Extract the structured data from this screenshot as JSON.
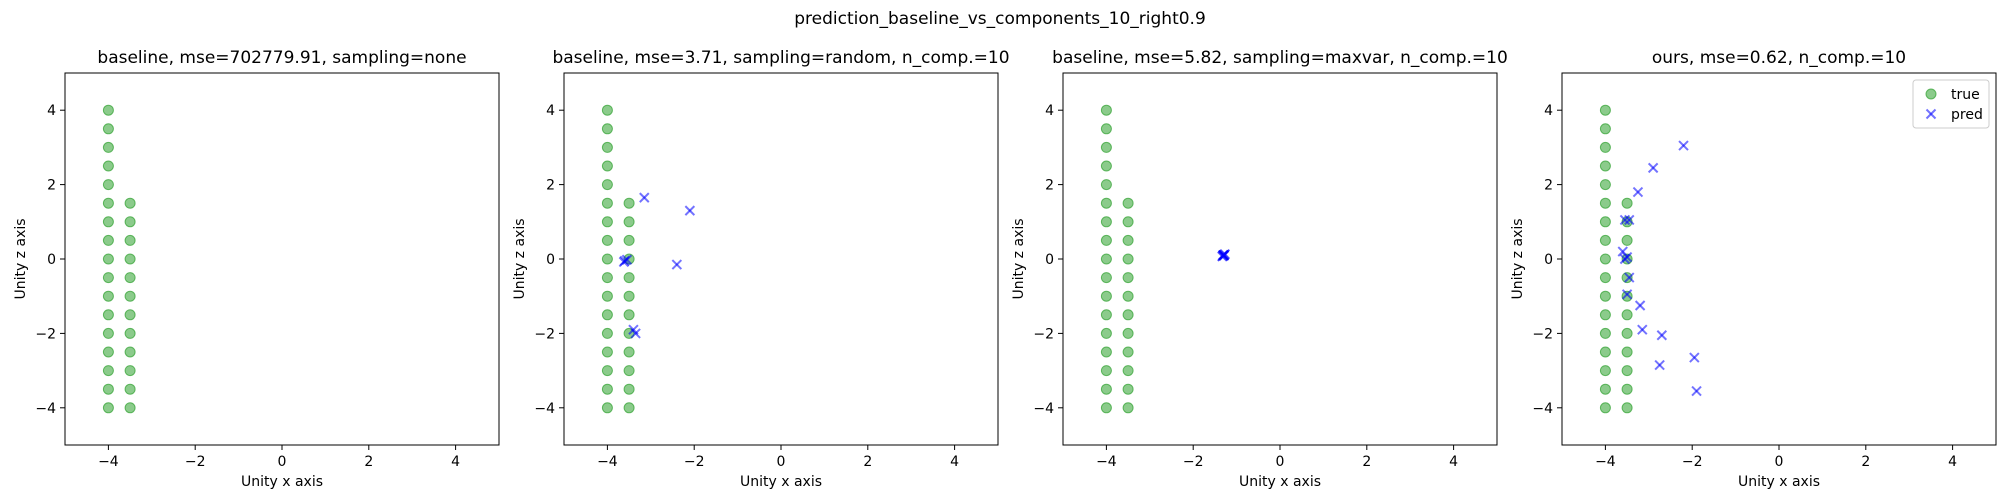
{
  "figure": {
    "suptitle": "prediction_baseline_vs_components_10_right0.9"
  },
  "colors": {
    "true": "#2ca02c",
    "pred": "#0000ff"
  },
  "chart_data": [
    {
      "type": "scatter",
      "title": "baseline, mse=702779.91, sampling=none",
      "xlabel": "Unity x axis",
      "ylabel": "Unity z axis",
      "xlim": [
        -5,
        5
      ],
      "ylim": [
        -5,
        5
      ],
      "xticks": [
        -4,
        -2,
        0,
        2,
        4
      ],
      "yticks": [
        -4,
        -2,
        0,
        2,
        4
      ],
      "grid": false,
      "series": [
        {
          "marker": "circle",
          "color": "#2ca02c",
          "x": [
            -4,
            -4,
            -4,
            -4,
            -4,
            -4,
            -4,
            -4,
            -4,
            -4,
            -4,
            -4,
            -4,
            -4,
            -4,
            -4,
            -4,
            -3.5,
            -3.5,
            -3.5,
            -3.5,
            -3.5,
            -3.5,
            -3.5,
            -3.5,
            -3.5,
            -3.5,
            -3.5,
            -3.5
          ],
          "y": [
            4,
            3.5,
            3,
            2.5,
            2,
            1.5,
            1,
            0.5,
            0,
            -0.5,
            -1,
            -1.5,
            -2,
            -2.5,
            -3,
            -3.5,
            -4,
            1.5,
            1,
            0.5,
            0,
            -0.5,
            -1,
            -1.5,
            -2,
            -2.5,
            -3,
            -3.5,
            -4
          ]
        }
      ]
    },
    {
      "type": "scatter",
      "title": "baseline, mse=3.71, sampling=random, n_comp.=10",
      "xlabel": "Unity x axis",
      "ylabel": "Unity z axis",
      "xlim": [
        -5,
        5
      ],
      "ylim": [
        -5,
        5
      ],
      "xticks": [
        -4,
        -2,
        0,
        2,
        4
      ],
      "yticks": [
        -4,
        -2,
        0,
        2,
        4
      ],
      "grid": false,
      "series": [
        {
          "marker": "circle",
          "color": "#2ca02c",
          "x": [
            -4,
            -4,
            -4,
            -4,
            -4,
            -4,
            -4,
            -4,
            -4,
            -4,
            -4,
            -4,
            -4,
            -4,
            -4,
            -4,
            -4,
            -3.5,
            -3.5,
            -3.5,
            -3.5,
            -3.5,
            -3.5,
            -3.5,
            -3.5,
            -3.5,
            -3.5,
            -3.5,
            -3.5
          ],
          "y": [
            4,
            3.5,
            3,
            2.5,
            2,
            1.5,
            1,
            0.5,
            0,
            -0.5,
            -1,
            -1.5,
            -2,
            -2.5,
            -3,
            -3.5,
            -4,
            1.5,
            1,
            0.5,
            0,
            -0.5,
            -1,
            -1.5,
            -2,
            -2.5,
            -3,
            -3.5,
            -4
          ]
        },
        {
          "marker": "x",
          "color": "#0000ff",
          "x": [
            -3.15,
            -2.1,
            -2.4,
            -3.6,
            -3.55,
            -3.62,
            -3.35,
            -3.4
          ],
          "y": [
            1.65,
            1.3,
            -0.15,
            -0.05,
            -0.02,
            -0.08,
            -2.0,
            -1.9
          ]
        }
      ]
    },
    {
      "type": "scatter",
      "title": "baseline, mse=5.82, sampling=maxvar, n_comp.=10",
      "xlabel": "Unity x axis",
      "ylabel": "Unity z axis",
      "xlim": [
        -5,
        5
      ],
      "ylim": [
        -5,
        5
      ],
      "xticks": [
        -4,
        -2,
        0,
        2,
        4
      ],
      "yticks": [
        -4,
        -2,
        0,
        2,
        4
      ],
      "grid": false,
      "series": [
        {
          "marker": "circle",
          "color": "#2ca02c",
          "x": [
            -4,
            -4,
            -4,
            -4,
            -4,
            -4,
            -4,
            -4,
            -4,
            -4,
            -4,
            -4,
            -4,
            -4,
            -4,
            -4,
            -4,
            -3.5,
            -3.5,
            -3.5,
            -3.5,
            -3.5,
            -3.5,
            -3.5,
            -3.5,
            -3.5,
            -3.5,
            -3.5,
            -3.5
          ],
          "y": [
            4,
            3.5,
            3,
            2.5,
            2,
            1.5,
            1,
            0.5,
            0,
            -0.5,
            -1,
            -1.5,
            -2,
            -2.5,
            -3,
            -3.5,
            -4,
            1.5,
            1,
            0.5,
            0,
            -0.5,
            -1,
            -1.5,
            -2,
            -2.5,
            -3,
            -3.5,
            -4
          ]
        },
        {
          "marker": "x",
          "color": "#0000ff",
          "x": [
            -1.3,
            -1.28,
            -1.32,
            -1.31,
            -1.29,
            -1.3,
            -1.27,
            -1.33,
            -1.3,
            -1.3
          ],
          "y": [
            0.1,
            0.12,
            0.08,
            0.11,
            0.09,
            0.1,
            0.13,
            0.07,
            0.1,
            0.1
          ]
        }
      ]
    },
    {
      "type": "scatter",
      "title": "ours, mse=0.62, n_comp.=10",
      "xlabel": "Unity x axis",
      "ylabel": "Unity z axis",
      "xlim": [
        -5,
        5
      ],
      "ylim": [
        -5,
        5
      ],
      "xticks": [
        -4,
        -2,
        0,
        2,
        4
      ],
      "yticks": [
        -4,
        -2,
        0,
        2,
        4
      ],
      "grid": false,
      "legend": {
        "placement": "top-right",
        "entries": [
          "true",
          "pred"
        ]
      },
      "series": [
        {
          "name": "true",
          "marker": "circle",
          "color": "#2ca02c",
          "x": [
            -4,
            -4,
            -4,
            -4,
            -4,
            -4,
            -4,
            -4,
            -4,
            -4,
            -4,
            -4,
            -4,
            -4,
            -4,
            -4,
            -4,
            -3.5,
            -3.5,
            -3.5,
            -3.5,
            -3.5,
            -3.5,
            -3.5,
            -3.5,
            -3.5,
            -3.5,
            -3.5,
            -3.5
          ],
          "y": [
            4,
            3.5,
            3,
            2.5,
            2,
            1.5,
            1,
            0.5,
            0,
            -0.5,
            -1,
            -1.5,
            -2,
            -2.5,
            -3,
            -3.5,
            -4,
            1.5,
            1,
            0.5,
            0,
            -0.5,
            -1,
            -1.5,
            -2,
            -2.5,
            -3,
            -3.5,
            -4
          ]
        },
        {
          "name": "pred",
          "marker": "x",
          "color": "#0000ff",
          "x": [
            -2.2,
            -2.9,
            -3.25,
            -3.55,
            -3.45,
            -3.6,
            -3.5,
            -3.55,
            -3.45,
            -3.5,
            -3.2,
            -3.15,
            -2.7,
            -2.75,
            -1.95,
            -1.9
          ],
          "y": [
            3.05,
            2.45,
            1.8,
            1.05,
            1.05,
            0.2,
            0.05,
            0.0,
            -0.5,
            -0.95,
            -1.25,
            -1.9,
            -2.05,
            -2.85,
            -2.65,
            -3.55
          ]
        }
      ]
    }
  ]
}
